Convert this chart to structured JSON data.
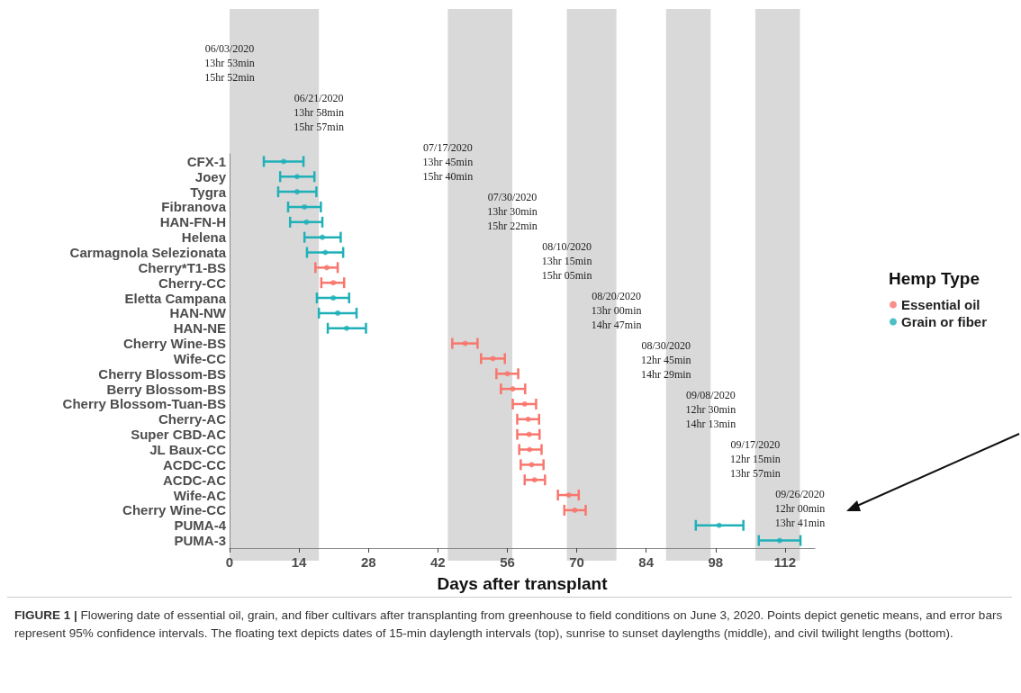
{
  "chart_data": {
    "type": "scatter",
    "orientation": "horizontal",
    "xlabel": "Days after transplant",
    "legend_title": "Hemp Type",
    "legend": "right",
    "grid": false,
    "marker": "circle",
    "xlim": [
      0,
      118
    ],
    "xticks": [
      0,
      14,
      28,
      42,
      56,
      70,
      84,
      98,
      112
    ],
    "categories": [
      "CFX-1",
      "Joey",
      "Tygra",
      "Fibranova",
      "HAN-FN-H",
      "Helena",
      "Carmagnola Selezionata",
      "Cherry*T1-BS",
      "Cherry-CC",
      "Eletta Campana",
      "HAN-NW",
      "HAN-NE",
      "Cherry Wine-BS",
      "Wife-CC",
      "Cherry Blossom-BS",
      "Berry Blossom-BS",
      "Cherry Blossom-Tuan-BS",
      "Cherry-AC",
      "Super CBD-AC",
      "JL Baux-CC",
      "ACDC-CC",
      "ACDC-AC",
      "Wife-AC",
      "Cherry Wine-CC",
      "PUMA-4",
      "PUMA-3"
    ],
    "series": [
      {
        "name": "Essential oil",
        "color": "#f8766d",
        "values": [
          null,
          null,
          null,
          null,
          null,
          null,
          null,
          19.6,
          20.9,
          null,
          null,
          null,
          47.5,
          53.1,
          56.0,
          57.1,
          59.5,
          60.2,
          60.4,
          60.5,
          60.9,
          61.5,
          68.4,
          69.6,
          null,
          null
        ],
        "errors": [
          null,
          null,
          null,
          null,
          null,
          null,
          null,
          [
            17.3,
            21.8
          ],
          [
            18.5,
            23.1
          ],
          null,
          null,
          null,
          [
            44.9,
            50.0
          ],
          [
            50.7,
            55.5
          ],
          [
            53.8,
            58.2
          ],
          [
            54.7,
            59.6
          ],
          [
            57.1,
            61.8
          ],
          [
            58.0,
            62.4
          ],
          [
            58.0,
            62.5
          ],
          [
            58.4,
            62.9
          ],
          [
            58.7,
            63.3
          ],
          [
            59.5,
            63.6
          ],
          [
            66.2,
            70.4
          ],
          [
            67.5,
            71.8
          ],
          null,
          null
        ]
      },
      {
        "name": "Grain or fiber",
        "color": "#1fb0b8",
        "values": [
          10.9,
          13.6,
          13.6,
          15.1,
          15.5,
          18.7,
          19.3,
          null,
          null,
          20.9,
          21.8,
          23.6,
          null,
          null,
          null,
          null,
          null,
          null,
          null,
          null,
          null,
          null,
          null,
          null,
          98.7,
          110.9
        ],
        "errors": [
          [
            6.9,
            14.9
          ],
          [
            10.2,
            17.1
          ],
          [
            9.8,
            17.5
          ],
          [
            11.8,
            18.4
          ],
          [
            12.2,
            18.7
          ],
          [
            15.1,
            22.4
          ],
          [
            15.6,
            22.9
          ],
          null,
          null,
          [
            17.6,
            24.1
          ],
          [
            18.0,
            25.6
          ],
          [
            19.8,
            27.5
          ],
          null,
          null,
          null,
          null,
          null,
          null,
          null,
          null,
          null,
          null,
          null,
          null,
          [
            94.0,
            103.6
          ],
          [
            106.7,
            115.1
          ]
        ]
      }
    ],
    "bands": [
      {
        "axis": "x",
        "from": 0,
        "to": 18,
        "color": "#d9d9d9"
      },
      {
        "axis": "x",
        "from": 44,
        "to": 57,
        "color": "#d9d9d9"
      },
      {
        "axis": "x",
        "from": 68,
        "to": 78,
        "color": "#d9d9d9"
      },
      {
        "axis": "x",
        "from": 88,
        "to": 97,
        "color": "#d9d9d9"
      },
      {
        "axis": "x",
        "from": 106,
        "to": 115,
        "color": "#d9d9d9"
      }
    ],
    "annotations": [
      {
        "text": "06/03/2020\n13hr 53min\n15hr 52min",
        "x": 0
      },
      {
        "text": "06/21/2020\n13hr 58min\n15hr 57min",
        "x": 18
      },
      {
        "text": "07/17/2020\n13hr 45min\n15hr 40min",
        "x": 44
      },
      {
        "text": "07/30/2020\n13hr 30min\n15hr 22min",
        "x": 57
      },
      {
        "text": "08/10/2020\n13hr 15min\n15hr 05min",
        "x": 68
      },
      {
        "text": "08/20/2020\n13hr 00min\n14hr 47min",
        "x": 78
      },
      {
        "text": "08/30/2020\n12hr 45min\n14hr 29min",
        "x": 88
      },
      {
        "text": "09/08/2020\n12hr 30min\n14hr 13min",
        "x": 97
      },
      {
        "text": "09/17/2020\n12hr 15min\n13hr 57min",
        "x": 106
      },
      {
        "text": "09/26/2020\n12hr 00min\n13hr 41min",
        "x": 115
      },
      "FIGURE 1 | Flowering date of essential oil, grain, and fiber cultivars after transplanting from greenhouse to field conditions on June 3, 2020. Points depict genetic means, and error bars represent 95% confidence intervals. The floating text depicts dates of 15-min daylength intervals (top), sunrise to sunset daylengths (middle), and civil twilight lengths (bottom)."
    ]
  }
}
